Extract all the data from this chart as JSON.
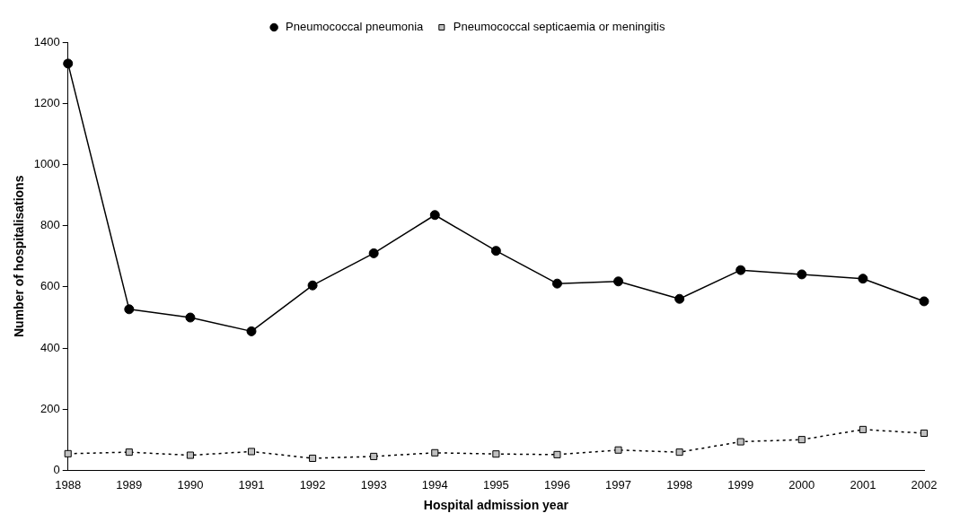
{
  "chart_data": {
    "type": "line",
    "xlabel": "Hospital admission year",
    "ylabel": "Number of hospitalisations",
    "categories": [
      "1988",
      "1989",
      "1990",
      "1991",
      "1992",
      "1993",
      "1994",
      "1995",
      "1996",
      "1997",
      "1998",
      "1999",
      "2000",
      "2001",
      "2002"
    ],
    "ylim": [
      0,
      1400
    ],
    "yticks": [
      0,
      200,
      400,
      600,
      800,
      1000,
      1200,
      1400
    ],
    "grid": false,
    "legend": "top",
    "series": [
      {
        "name": "Pneumococcal pneumonia",
        "color": "#000000",
        "marker": "circle",
        "line_style": "solid",
        "values": [
          1330,
          527,
          500,
          455,
          605,
          710,
          835,
          718,
          611,
          618,
          561,
          655,
          641,
          627,
          553
        ]
      },
      {
        "name": "Pneumococcal septicaemia or meningitis",
        "color": "#c0c0c0",
        "marker": "square",
        "line_style": "dotted",
        "values": [
          55,
          60,
          50,
          62,
          40,
          46,
          58,
          54,
          52,
          67,
          60,
          94,
          101,
          134,
          122
        ]
      }
    ]
  }
}
